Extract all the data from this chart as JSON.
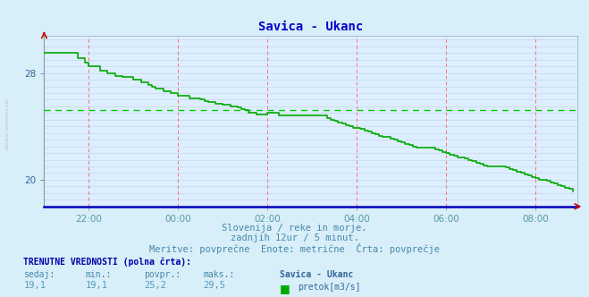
{
  "title": "Savica - Ukanc",
  "title_color": "#0000cc",
  "bg_color": "#d8eef8",
  "plot_bg_color": "#ddeeff",
  "line_color": "#00aa00",
  "avg_line_color": "#00cc00",
  "avg_value": 25.2,
  "ylim": [
    18.0,
    30.8
  ],
  "ytick_vals": [
    20,
    28
  ],
  "subtitle1": "Slovenija / reke in morje.",
  "subtitle2": "zadnjih 12ur / 5 minut.",
  "subtitle3": "Meritve: povprečne  Enote: metrične  Črta: povprečje",
  "footer_title": "TRENUTNE VREDNOSTI (polna črta):",
  "footer_labels": [
    "sedaj:",
    "min.:",
    "povpr.:",
    "maks.:"
  ],
  "footer_values": [
    "19,1",
    "19,1",
    "25,2",
    "29,5"
  ],
  "legend_label": "pretok[m3/s]",
  "legend_station": "Savica - Ukanc",
  "watermark": "www.si-vreme.com",
  "x_tick_positions": [
    1,
    3,
    5,
    7,
    9,
    11
  ],
  "x_tick_labels": [
    "22:00",
    "00:00",
    "02:00",
    "04:00",
    "06:00",
    "08:00"
  ],
  "time_step_min": 5,
  "y_data": [
    29.5,
    29.5,
    29.5,
    29.5,
    29.5,
    29.5,
    29.5,
    29.5,
    29.5,
    29.1,
    29.1,
    28.8,
    28.5,
    28.5,
    28.5,
    28.2,
    28.2,
    28.0,
    28.0,
    27.8,
    27.8,
    27.7,
    27.7,
    27.7,
    27.5,
    27.5,
    27.3,
    27.3,
    27.1,
    27.0,
    26.8,
    26.8,
    26.6,
    26.6,
    26.5,
    26.5,
    26.3,
    26.3,
    26.3,
    26.1,
    26.1,
    26.1,
    26.0,
    25.9,
    25.8,
    25.8,
    25.7,
    25.7,
    25.6,
    25.6,
    25.5,
    25.5,
    25.4,
    25.3,
    25.2,
    25.0,
    25.0,
    24.9,
    24.9,
    24.9,
    25.0,
    25.0,
    25.0,
    24.8,
    24.8,
    24.8,
    24.8,
    24.8,
    24.8,
    24.8,
    24.8,
    24.8,
    24.8,
    24.8,
    24.8,
    24.8,
    24.6,
    24.5,
    24.4,
    24.3,
    24.2,
    24.1,
    24.0,
    23.9,
    23.9,
    23.8,
    23.7,
    23.6,
    23.5,
    23.4,
    23.3,
    23.2,
    23.2,
    23.1,
    23.0,
    22.9,
    22.8,
    22.7,
    22.6,
    22.5,
    22.4,
    22.4,
    22.4,
    22.4,
    22.4,
    22.3,
    22.2,
    22.1,
    22.0,
    21.9,
    21.8,
    21.7,
    21.7,
    21.6,
    21.5,
    21.4,
    21.3,
    21.2,
    21.1,
    21.0,
    21.0,
    21.0,
    21.0,
    21.0,
    20.9,
    20.8,
    20.7,
    20.6,
    20.5,
    20.4,
    20.3,
    20.2,
    20.1,
    20.0,
    20.0,
    19.9,
    19.8,
    19.7,
    19.6,
    19.5,
    19.4,
    19.3,
    19.1
  ]
}
